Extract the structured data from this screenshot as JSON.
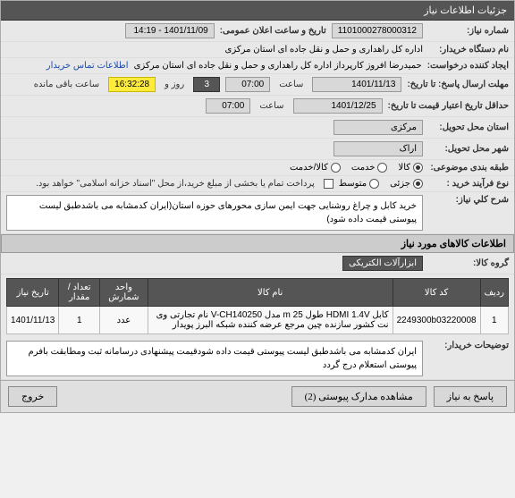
{
  "header": {
    "title": "جزئیات اطلاعات نیاز"
  },
  "fields": {
    "need_no": {
      "label": "شماره نیاز:",
      "value": "1101000278000312"
    },
    "announce": {
      "label": "تاریخ و ساعت اعلان عمومی:",
      "value": "1401/11/09 - 14:19"
    },
    "buyer_org": {
      "label": "نام دستگاه خریدار:",
      "value": "اداره کل راهداری و حمل و نقل جاده ای استان مرکزی"
    },
    "creator": {
      "label": "ایجاد کننده درخواست:",
      "value": "حمیدرضا  افروز  کارپرداز اداره کل راهداری و حمل و نقل جاده ای استان مرکزی"
    },
    "creator_link": "اطلاعات تماس خریدار",
    "deadline": {
      "label": "مهلت ارسال پاسخ:  تا تاریخ:",
      "date": "1401/11/13",
      "time": "07:00",
      "word_saat": "ساعت",
      "days": "3",
      "word_rooz": "روز و",
      "timer": "16:32:28",
      "remain": "ساعت باقی مانده"
    },
    "validity": {
      "label": "حداقل تاریخ اعتبار قیمت تا تاریخ:",
      "date": "1401/12/25",
      "time": "07:00",
      "word_saat": "ساعت"
    },
    "province": {
      "label": "استان محل تحویل:",
      "value": "مرکزی"
    },
    "city": {
      "label": "شهر محل تحویل:",
      "value": "اراک"
    },
    "subject_type": {
      "label": "طبقه بندی موضوعی:",
      "options": [
        {
          "label": "کالا",
          "checked": true
        },
        {
          "label": "خدمت",
          "checked": false
        },
        {
          "label": "کالا/خدمت",
          "checked": false
        }
      ]
    },
    "buy_process": {
      "label": "نوع فرآیند خرید :",
      "options": [
        {
          "label": "جزئی",
          "checked": true
        },
        {
          "label": "متوسط",
          "checked": false
        }
      ],
      "note": "پرداخت تمام یا بخشی از مبلغ خرید،از محل \"اسناد خزانه اسلامی\" خواهد بود."
    },
    "general_desc": {
      "label": "شرح کلي نیاز:",
      "text": "خرید کابل و چراغ روشنایی جهت ایمن سازی محورهای حوزه استان(ایران کدمشابه می باشدطبق لیست پیوستی قیمت داده شود)"
    },
    "buyer_notes": {
      "label": "توضیحات خریدار:",
      "text": "ایران کدمشابه می باشدطبق لیست پیوستی قیمت داده شودقیمت پیشنهادی درسامانه ثبت ومطابقت بافرم پیوستی استعلام درج گردد"
    }
  },
  "items_section": {
    "title": "اطلاعات کالاهای مورد نیاز",
    "group_label": "گروه کالا:",
    "group_value": "ابزارآلات الکتریکی",
    "columns": [
      "ردیف",
      "کد کالا",
      "نام کالا",
      "واحد شمارش",
      "تعداد / مقدار",
      "تاریخ نیاز"
    ],
    "rows": [
      [
        "1",
        "2249300b03220008",
        "کابل HDMI 1.4V طول m 25 مدل V-CH140250 نام تجارتی وی نت کشور سازنده چین مرجع عرضه کننده شبکه البرز پویدار",
        "عدد",
        "1",
        "1401/11/13"
      ]
    ]
  },
  "footer": {
    "reply": "پاسخ به نیاز",
    "attach": "مشاهده مدارک پیوستی (2)",
    "exit": "خروج"
  }
}
